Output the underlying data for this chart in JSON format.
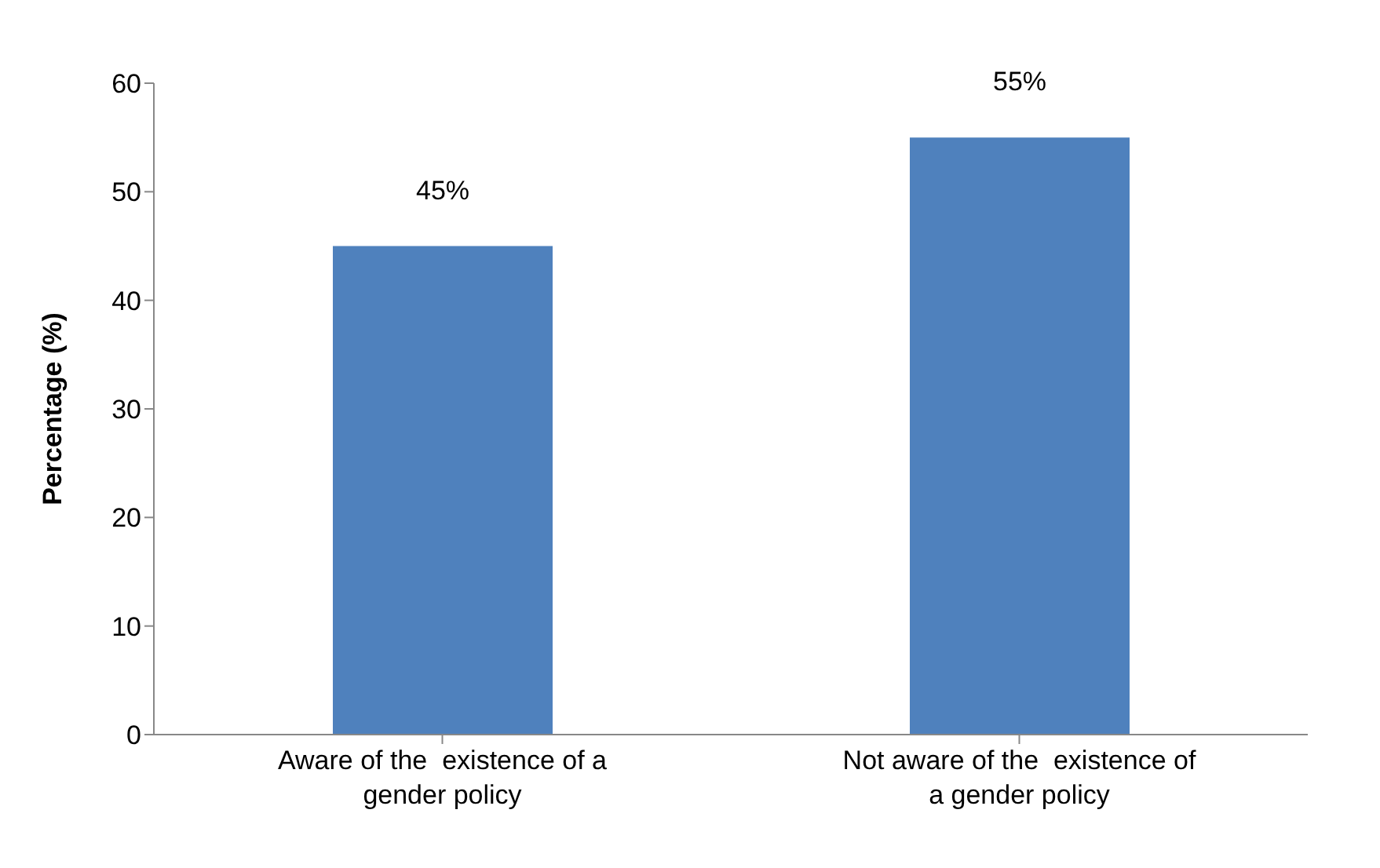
{
  "chart_data": {
    "type": "bar",
    "ylabel": "Percentage (%)",
    "categories": [
      "Aware of the  existence of a gender policy",
      "Not aware of the  existence of a gender policy"
    ],
    "values": [
      45,
      55
    ],
    "color": "#4f81bd",
    "value_labels": [
      "45%",
      "55%"
    ],
    "ylim": [
      0,
      60
    ],
    "yticks": [
      0,
      10,
      20,
      30,
      40,
      50,
      60
    ],
    "grid": false
  }
}
